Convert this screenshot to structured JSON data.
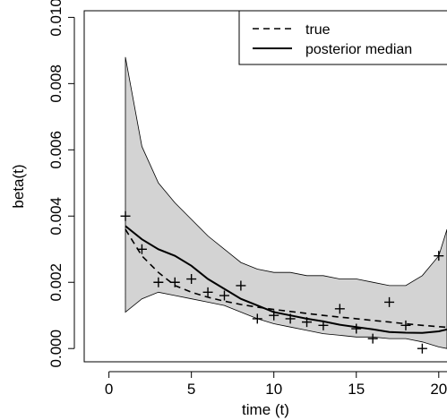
{
  "chart_data": {
    "type": "line",
    "xlabel": "time (t)",
    "ylabel": "beta(t)",
    "xlim": [
      -1.5,
      20.5
    ],
    "ylim": [
      -0.0004,
      0.0102
    ],
    "x_ticks": [
      0,
      5,
      10,
      15,
      20
    ],
    "x_tick_labels": [
      "0",
      "5",
      "10",
      "15",
      "20"
    ],
    "y_ticks": [
      0.0,
      0.002,
      0.004,
      0.006,
      0.008,
      0.01
    ],
    "y_tick_labels": [
      "0.000",
      "0.002",
      "0.004",
      "0.006",
      "0.008",
      "0.010"
    ],
    "legend": {
      "position": "top-right",
      "entries": [
        {
          "label": "true",
          "style": "dashed"
        },
        {
          "label": "posterior median",
          "style": "solid"
        }
      ]
    },
    "band": {
      "color": "#d3d3d3",
      "x": [
        1,
        2,
        3,
        4,
        5,
        6,
        7,
        8,
        9,
        10,
        11,
        12,
        13,
        14,
        15,
        16,
        17,
        18,
        19,
        20,
        20.5
      ],
      "upper": [
        0.0088,
        0.0061,
        0.005,
        0.0044,
        0.0039,
        0.0034,
        0.003,
        0.0026,
        0.0024,
        0.0023,
        0.0023,
        0.0022,
        0.0022,
        0.0021,
        0.0021,
        0.002,
        0.0019,
        0.0019,
        0.0022,
        0.0028,
        0.0036
      ],
      "lower": [
        0.0011,
        0.0015,
        0.0017,
        0.0016,
        0.0015,
        0.0014,
        0.0013,
        0.0011,
        0.0009,
        0.00075,
        0.00065,
        0.00055,
        0.00045,
        0.0004,
        0.00035,
        0.00035,
        0.0003,
        0.0003,
        0.0002,
        5e-05,
        0.0
      ]
    },
    "series": [
      {
        "name": "true",
        "style": "dashed",
        "x": [
          1,
          2,
          3,
          4,
          5,
          6,
          7,
          8,
          9,
          10,
          11,
          12,
          13,
          14,
          15,
          16,
          17,
          18,
          19,
          20,
          20.5
        ],
        "y": [
          0.0036,
          0.0028,
          0.0023,
          0.0019,
          0.0017,
          0.00155,
          0.00143,
          0.00133,
          0.00125,
          0.00118,
          0.00112,
          0.00106,
          0.001,
          0.00095,
          0.0009,
          0.00085,
          0.0008,
          0.00075,
          0.0007,
          0.00066,
          0.00064
        ]
      },
      {
        "name": "posterior median",
        "style": "solid",
        "x": [
          1,
          2,
          3,
          4,
          5,
          6,
          7,
          8,
          9,
          10,
          11,
          12,
          13,
          14,
          15,
          16,
          17,
          18,
          19,
          20,
          20.5
        ],
        "y": [
          0.0037,
          0.0033,
          0.003,
          0.0028,
          0.0025,
          0.0021,
          0.0018,
          0.0015,
          0.0013,
          0.0011,
          0.001,
          0.0009,
          0.00082,
          0.00072,
          0.00065,
          0.00058,
          0.0005,
          0.00048,
          0.00047,
          0.00052,
          0.00058
        ]
      }
    ],
    "observed_points": {
      "marker": "+",
      "x": [
        1,
        2,
        3,
        4,
        5,
        6,
        7,
        8,
        9,
        10,
        11,
        12,
        13,
        14,
        15,
        16,
        17,
        18,
        19,
        20
      ],
      "y": [
        0.004,
        0.003,
        0.002,
        0.002,
        0.0021,
        0.0017,
        0.0016,
        0.0019,
        0.0009,
        0.001,
        0.0009,
        0.0008,
        0.0007,
        0.0012,
        0.0006,
        0.0003,
        0.0014,
        0.0007,
        0.0,
        0.0028
      ]
    }
  }
}
